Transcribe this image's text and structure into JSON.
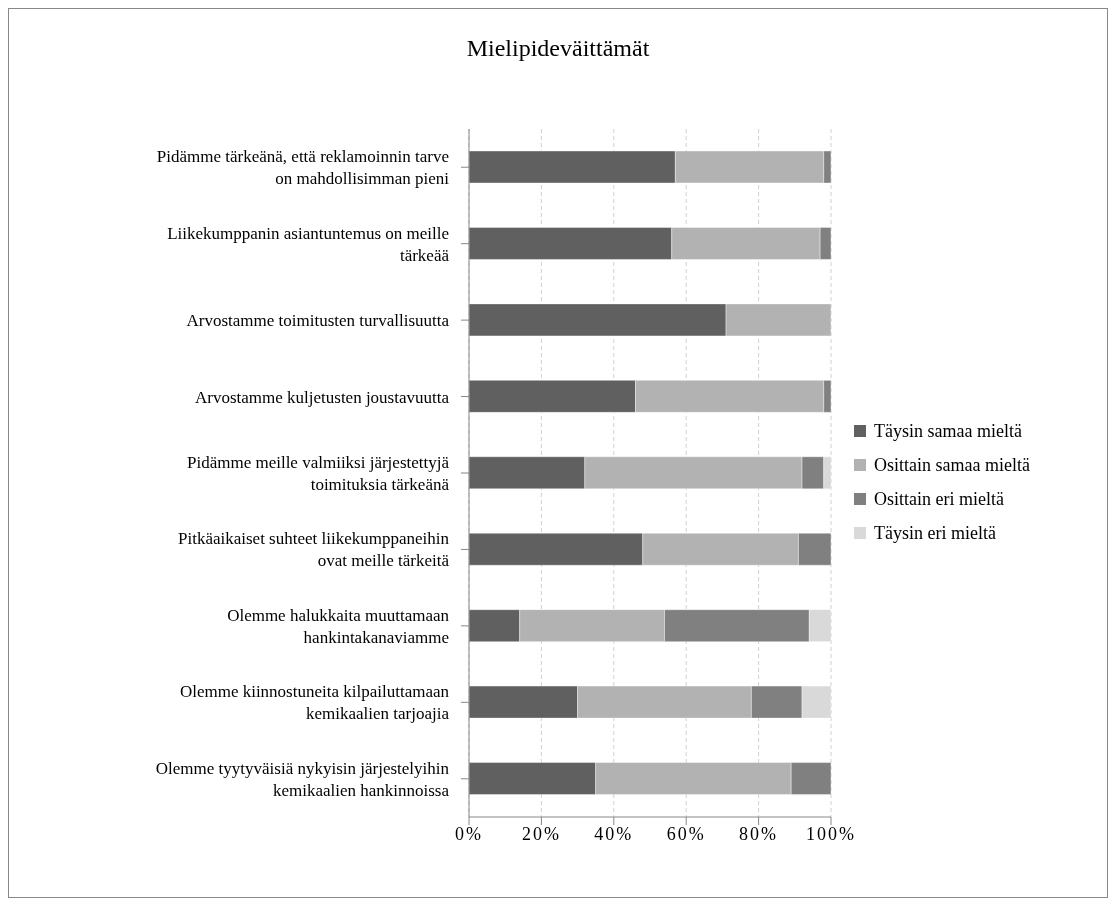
{
  "chart_data": {
    "type": "bar",
    "orientation": "horizontal",
    "stacked": true,
    "title": "Mielipideväittämät",
    "categories": [
      "Pidämme tärkeänä, että reklamoinnin tarve on mahdollisimman pieni",
      "Liikekumppanin asiantuntemus on meille tärkeää",
      "Arvostamme toimitusten turvallisuutta",
      "Arvostamme kuljetusten joustavuutta",
      "Pidämme meille valmiiksi järjestettyjä toimituksia tärkeänä",
      "Pitkäaikaiset suhteet liikekumppaneihin ovat meille tärkeitä",
      "Olemme halukkaita muuttamaan hankintakanaviamme",
      "Olemme kiinnostuneita kilpailuttamaan kemikaalien tarjoajia",
      "Olemme tyytyväisiä nykyisin järjestelyihin kemikaalien hankinnoissa"
    ],
    "series": [
      {
        "name": "Täysin samaa mieltä",
        "color": "#606060",
        "values": [
          57,
          56,
          71,
          46,
          32,
          48,
          14,
          30,
          35
        ]
      },
      {
        "name": "Osittain samaa mieltä",
        "color": "#b2b2b2",
        "values": [
          41,
          41,
          29,
          52,
          60,
          43,
          40,
          48,
          54
        ]
      },
      {
        "name": "Osittain eri mieltä",
        "color": "#808080",
        "values": [
          2,
          3,
          0,
          2,
          6,
          9,
          40,
          14,
          11
        ]
      },
      {
        "name": "Täysin eri mieltä",
        "color": "#d9d9d9",
        "values": [
          0,
          0,
          0,
          0,
          2,
          0,
          6,
          8,
          0
        ]
      }
    ],
    "xlim": [
      0,
      100
    ],
    "xticks": [
      {
        "value": 0,
        "label": "0%"
      },
      {
        "value": 20,
        "label": "20%"
      },
      {
        "value": 40,
        "label": "40%"
      },
      {
        "value": 60,
        "label": "60%"
      },
      {
        "value": 80,
        "label": "80%"
      },
      {
        "value": 100,
        "label": "100%"
      }
    ],
    "grid": "x",
    "legend": "right"
  }
}
